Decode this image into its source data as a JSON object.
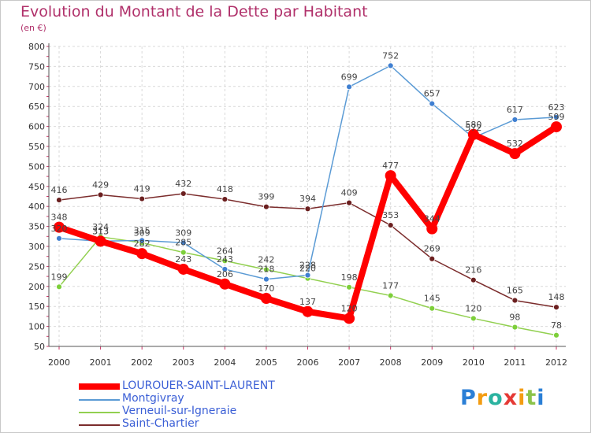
{
  "chart_data": {
    "type": "line",
    "title": "Evolution du Montant de la Dette par Habitant",
    "subtitle": "(en €)",
    "xlabel": "",
    "ylabel": "",
    "x": [
      "2000",
      "2001",
      "2002",
      "2003",
      "2004",
      "2005",
      "2006",
      "2007",
      "2008",
      "2009",
      "2010",
      "2011",
      "2012"
    ],
    "ylim": [
      50,
      800
    ],
    "yticks": [
      50,
      100,
      150,
      200,
      250,
      300,
      350,
      400,
      450,
      500,
      550,
      600,
      650,
      700,
      750,
      800
    ],
    "grid": true,
    "legend_position": "bottom-left",
    "series": [
      {
        "name": "LOUROUER-SAINT-LAURENT",
        "color": "#ff0000",
        "values": [
          348,
          313,
          282,
          243,
          206,
          170,
          137,
          120,
          477,
          344,
          580,
          532,
          599
        ]
      },
      {
        "name": "Montgivray",
        "color": "#5b9bd5",
        "values": [
          320,
          313,
          315,
          309,
          243,
          218,
          228,
          699,
          752,
          657,
          572,
          617,
          623
        ]
      },
      {
        "name": "Verneuil-sur-Igneraie",
        "color": "#92d050",
        "values": [
          199,
          324,
          309,
          285,
          264,
          242,
          220,
          198,
          177,
          145,
          120,
          98,
          78
        ]
      },
      {
        "name": "Saint-Chartier",
        "color": "#7b2c2c",
        "values": [
          416,
          429,
          419,
          432,
          418,
          399,
          394,
          409,
          353,
          269,
          216,
          165,
          148
        ]
      }
    ]
  },
  "logo": {
    "text": "Proxiti",
    "letters": [
      "P",
      "r",
      "o",
      "x",
      "i",
      "t",
      "i"
    ],
    "colors": [
      "#2b7fd6",
      "#f39c12",
      "#2bb3a0",
      "#e53935",
      "#f39c12",
      "#8bc34a",
      "#2b7fd6"
    ]
  }
}
